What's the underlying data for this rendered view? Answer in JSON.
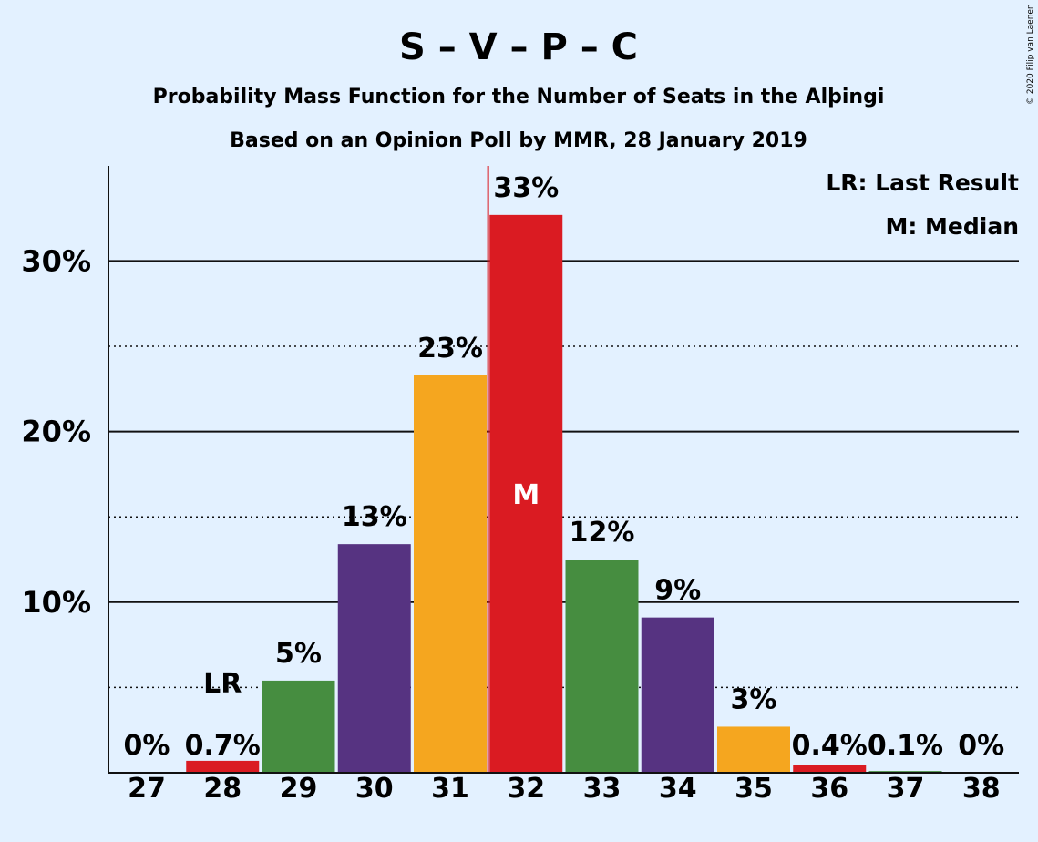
{
  "title": "S – V – P – C",
  "subtitle1": "Probability Mass Function for the Number of Seats in the Alþingi",
  "subtitle2": "Based on an Opinion Poll by MMR, 28 January 2019",
  "copyright": "© 2020 Filip van Laenen",
  "legend": {
    "lr": "LR: Last Result",
    "m": "M: Median"
  },
  "markers": {
    "lr": "LR",
    "median": "M"
  },
  "colors": {
    "red": "#da1b22",
    "green": "#468d40",
    "purple": "#563381",
    "orange": "#f5a61f",
    "background": "#e3f1ff"
  },
  "chart_data": {
    "type": "bar",
    "categories": [
      "27",
      "28",
      "29",
      "30",
      "31",
      "32",
      "33",
      "34",
      "35",
      "36",
      "37",
      "38"
    ],
    "values": [
      0,
      0.7,
      5.4,
      13.4,
      23.3,
      32.7,
      12.5,
      9.1,
      2.7,
      0.45,
      0.1,
      0
    ],
    "labels": [
      "0%",
      "0.7%",
      "5%",
      "13%",
      "23%",
      "33%",
      "12%",
      "9%",
      "3%",
      "0.4%",
      "0.1%",
      "0%"
    ],
    "bar_colors": [
      "#da1b22",
      "#da1b22",
      "#468d40",
      "#563381",
      "#f5a61f",
      "#da1b22",
      "#468d40",
      "#563381",
      "#f5a61f",
      "#da1b22",
      "#468d40",
      "#563381"
    ],
    "ylim": [
      0,
      35
    ],
    "yticks": [
      10,
      20,
      30
    ],
    "ytick_labels": [
      "10%",
      "20%",
      "30%"
    ],
    "minor_gridlines": [
      5,
      15,
      25
    ],
    "last_result": "28",
    "median": "32",
    "xlabel": "",
    "ylabel": ""
  }
}
